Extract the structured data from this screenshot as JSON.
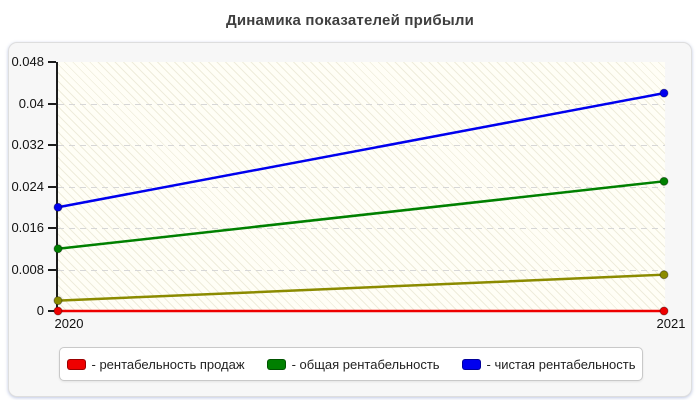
{
  "page": {
    "title": "Динамика показателей прибыли"
  },
  "chart_data": {
    "type": "line",
    "title": "Динамика показателей прибыли",
    "categories": [
      "2020",
      "2021"
    ],
    "series": [
      {
        "name": "рентабельность продаж",
        "color": "#ee0000",
        "values": [
          0,
          0
        ],
        "in_legend": true
      },
      {
        "name": "общая рентабельность",
        "color": "#008000",
        "values": [
          0.012,
          0.025
        ],
        "in_legend": true
      },
      {
        "name": "чистая рентабельность",
        "color": "#0000ee",
        "values": [
          0.02,
          0.042
        ],
        "in_legend": true
      },
      {
        "name": "",
        "color": "#8b8b00",
        "values": [
          0.002,
          0.007
        ],
        "in_legend": false
      }
    ],
    "ylim": [
      0,
      0.048
    ],
    "yticks": [
      0,
      0.008,
      0.016,
      0.024,
      0.032,
      0.04,
      0.048
    ],
    "y_tick_labels": [
      "0",
      "0.008",
      "0.016",
      "0.024",
      "0.032",
      "0.04",
      "0.048"
    ],
    "grid": "horizontal-dashed",
    "plot_background": "hatched",
    "legend_position": "bottom",
    "marker": "circle"
  },
  "legend": {
    "items": [
      {
        "label": "- рентабельность продаж",
        "color": "#ee0000"
      },
      {
        "label": "- общая рентабельность",
        "color": "#008000"
      },
      {
        "label": "- чистая рентабельность",
        "color": "#0000ee"
      }
    ]
  },
  "colors": {
    "accent_red": "#ee0000",
    "accent_green": "#008000",
    "accent_blue": "#0000ee",
    "accent_olive": "#8b8b00",
    "panel_bg": "#f7f7f7",
    "title_text": "#3f3f3f"
  }
}
